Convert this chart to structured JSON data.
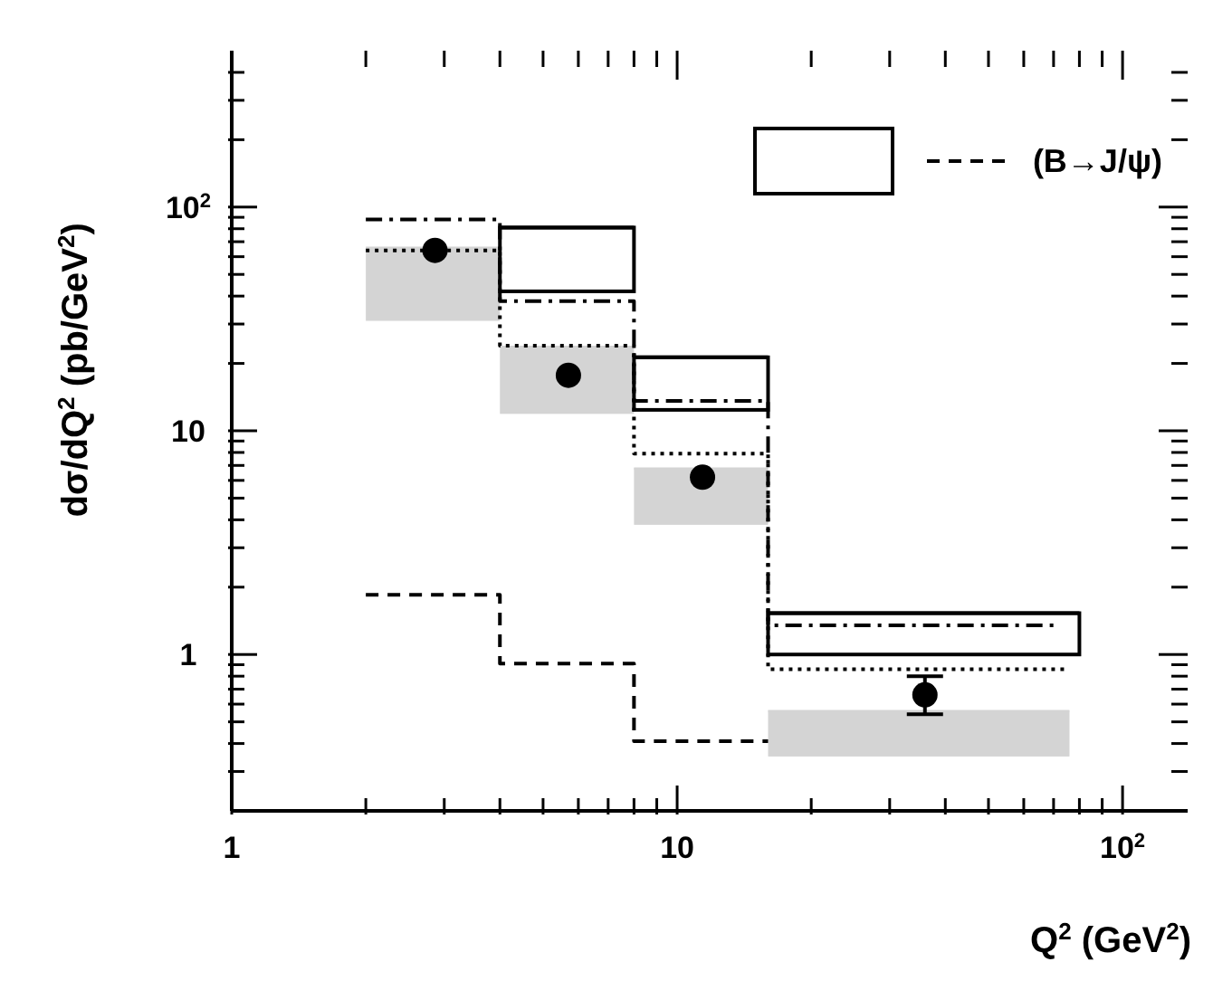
{
  "chart_data": {
    "type": "scatter",
    "xlabel": "Q$^{2}$ (GeV$^{2}$)",
    "ylabel": "dσ/dQ$^{2}$ (pb/GeV$^{2}$)",
    "log": "xy",
    "legend": "top right",
    "xlim": [
      1,
      140
    ],
    "ylim": [
      0.2,
      500
    ],
    "xticks": [
      1,
      {
        "value": 2,
        "label": null
      },
      {
        "value": 3,
        "label": null
      },
      {
        "value": 4,
        "label": null
      },
      {
        "value": 5,
        "label": null
      },
      {
        "value": 6,
        "label": null
      },
      {
        "value": 7,
        "label": null
      },
      {
        "value": 8,
        "label": null
      },
      {
        "value": 9,
        "label": null
      },
      10,
      {
        "value": 20,
        "label": null
      },
      {
        "value": 30,
        "label": null
      },
      {
        "value": 40,
        "label": null
      },
      {
        "value": 50,
        "label": null
      },
      {
        "value": 60,
        "label": null
      },
      {
        "value": 70,
        "label": null
      },
      {
        "value": 80,
        "label": null
      },
      {
        "value": 90,
        "label": null
      },
      {
        "value": 100,
        "label": "10$^{2}$"
      }
    ],
    "yticks": [
      {
        "value": 0.3,
        "label": null
      },
      {
        "value": 0.4,
        "label": null
      },
      {
        "value": 0.5,
        "label": null
      },
      {
        "value": 0.6,
        "label": null
      },
      {
        "value": 0.7,
        "label": null
      },
      {
        "value": 0.8,
        "label": null
      },
      {
        "value": 0.9,
        "label": null
      },
      1,
      {
        "value": 2,
        "label": null
      },
      {
        "value": 3,
        "label": null
      },
      {
        "value": 4,
        "label": null
      },
      {
        "value": 5,
        "label": null
      },
      {
        "value": 6,
        "label": null
      },
      {
        "value": 7,
        "label": null
      },
      {
        "value": 8,
        "label": null
      },
      {
        "value": 9,
        "label": null
      },
      10,
      {
        "value": 20,
        "label": null
      },
      {
        "value": 30,
        "label": null
      },
      {
        "value": 40,
        "label": null
      },
      {
        "value": 50,
        "label": null
      },
      {
        "value": 60,
        "label": null
      },
      {
        "value": 70,
        "label": null
      },
      {
        "value": 80,
        "label": null
      },
      {
        "value": 90,
        "label": null
      },
      {
        "value": 100,
        "label": "10$^{2}$"
      },
      {
        "value": 200,
        "label": null
      },
      {
        "value": 300,
        "label": null
      },
      {
        "value": 400,
        "label": null
      }
    ],
    "series": [
      {
        "type": "bar",
        "color": "#d4d4d4",
        "x": [
          2.83,
          5.66,
          11.3,
          34.9
        ],
        "xerrors": [
          [
            2,
            4
          ],
          [
            4,
            8
          ],
          [
            8,
            16
          ],
          [
            16,
            76
          ]
        ],
        "base": [
          31,
          11.9,
          3.8,
          0.35
        ],
        "values": [
          35,
          11.9,
          3.0,
          0.21
        ]
      },
      {
        "type": "bar",
        "color": "#000000",
        "line_style": "solid",
        "x": [
          5.66,
          11.3,
          35.8
        ],
        "xerrors": [
          [
            4,
            8
          ],
          [
            8,
            16
          ],
          [
            16,
            80
          ]
        ],
        "base": [
          42,
          12.4,
          1.0
        ],
        "values": [
          39,
          8.9,
          0.53
        ]
      },
      {
        "type": "step",
        "color": "#000000",
        "line_style": "dashdot",
        "x": [
          2,
          4,
          8,
          16,
          72
        ],
        "values": [
          88,
          38,
          13.6,
          1.35,
          1.35
        ]
      },
      {
        "type": "step",
        "color": "#000000",
        "line_style": "dotted",
        "x": [
          2,
          4,
          8,
          16,
          75
        ],
        "values": [
          64,
          24,
          7.9,
          0.86,
          0.86
        ]
      },
      {
        "type": "step",
        "name": "(B→J/ψ)",
        "color": "#000000",
        "line_style": "dashed",
        "x": [
          2,
          4,
          8,
          16
        ],
        "values": [
          1.85,
          0.91,
          0.41,
          0.41
        ]
      },
      {
        "color": "#000000",
        "marker": "circle",
        "x": [
          2.86,
          5.7,
          11.4,
          36
        ],
        "values": [
          64,
          17.7,
          6.2,
          0.66
        ],
        "errors": [
          null,
          null,
          null,
          [
            0.54,
            0.8
          ]
        ]
      }
    ]
  }
}
